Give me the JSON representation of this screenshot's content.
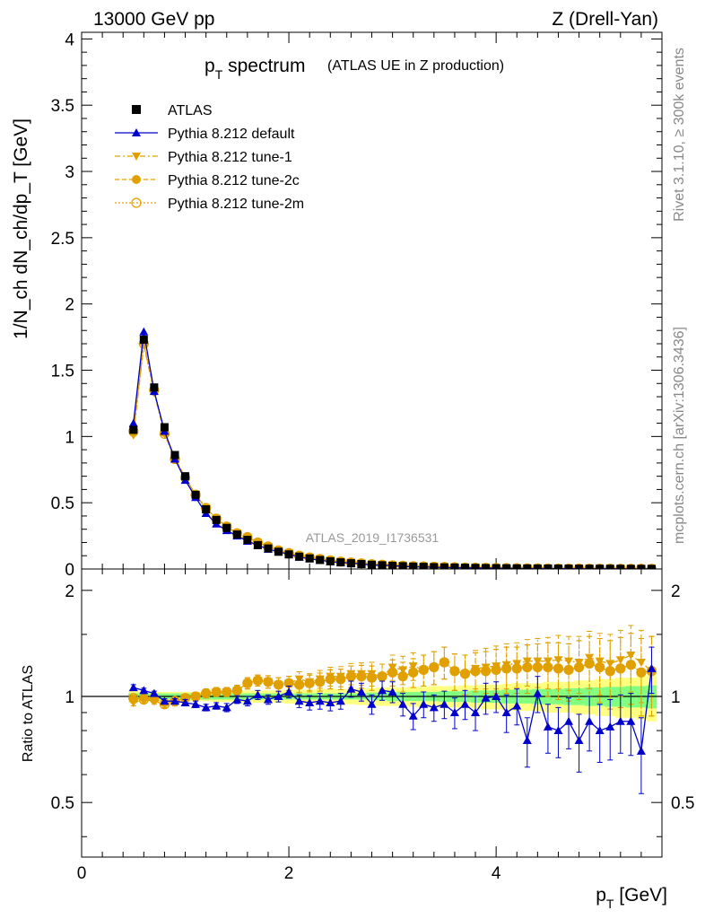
{
  "header": {
    "left_label": "13000 GeV pp",
    "right_label": "Z (Drell-Yan)"
  },
  "side_labels": {
    "rivet": "Rivet 3.1.10, ≥ 300k events",
    "mcplots": "mcplots.cern.ch [arXiv:1306.3436]"
  },
  "watermark": "ATLAS_2019_I1736531",
  "colors": {
    "data": "#000000",
    "default": "#0000cc",
    "tunes": "#e0a000",
    "band_inner": "#80ff80",
    "band_outer": "#ffff80"
  },
  "chart_data": [
    {
      "type": "line",
      "title_main": "p",
      "title_sub": "T",
      "title_rest": " spectrum",
      "title_note": "(ATLAS UE in Z production)",
      "ylabel": "1/N_ch dN_ch/dp_T [GeV]",
      "xlim": [
        0,
        5.6
      ],
      "ylim": [
        0,
        4.05
      ],
      "y_ticks": [
        0,
        0.5,
        1,
        1.5,
        2,
        2.5,
        3,
        3.5,
        4
      ],
      "y_tick_labels": [
        "0",
        "0.5",
        "1",
        "1.5",
        "2",
        "2.5",
        "3",
        "3.5",
        "4"
      ],
      "x": [
        0.5,
        0.6,
        0.7,
        0.8,
        0.9,
        1.0,
        1.1,
        1.2,
        1.3,
        1.4,
        1.5,
        1.6,
        1.7,
        1.8,
        1.9,
        2.0,
        2.1,
        2.2,
        2.3,
        2.4,
        2.5,
        2.6,
        2.7,
        2.8,
        2.9,
        3.0,
        3.1,
        3.2,
        3.3,
        3.4,
        3.5,
        3.6,
        3.7,
        3.8,
        3.9,
        4.0,
        4.1,
        4.2,
        4.3,
        4.4,
        4.5,
        4.6,
        4.7,
        4.8,
        4.9,
        5.0,
        5.1,
        5.2,
        5.3,
        5.4,
        5.5
      ],
      "legend": [
        {
          "label": "ATLAS",
          "marker": "square",
          "style": "none"
        },
        {
          "label": "Pythia 8.212 default",
          "marker": "triangle-up",
          "style": "solid"
        },
        {
          "label": "Pythia 8.212 tune-1",
          "marker": "triangle-down",
          "style": "dashdot"
        },
        {
          "label": "Pythia 8.212 tune-2c",
          "marker": "circle",
          "style": "dashed"
        },
        {
          "label": "Pythia 8.212 tune-2m",
          "marker": "circle-open",
          "style": "dotted"
        }
      ],
      "series": [
        {
          "name": "ATLAS",
          "values": [
            1.05,
            1.73,
            1.37,
            1.07,
            0.86,
            0.7,
            0.56,
            0.45,
            0.37,
            0.31,
            0.26,
            0.22,
            0.18,
            0.155,
            0.13,
            0.11,
            0.093,
            0.08,
            0.068,
            0.058,
            0.05,
            0.043,
            0.037,
            0.032,
            0.028,
            0.024,
            0.021,
            0.018,
            0.016,
            0.014,
            0.012,
            0.011,
            0.0095,
            0.0083,
            0.0073,
            0.0064,
            0.0056,
            0.0049,
            0.0043,
            0.0038,
            0.0034,
            0.003,
            0.0027,
            0.0024,
            0.0021,
            0.0019,
            0.0017,
            0.0015,
            0.0013,
            0.0012,
            0.0011
          ]
        },
        {
          "name": "Pythia 8.212 default",
          "values": [
            1.1,
            1.79,
            1.34,
            1.04,
            0.83,
            0.67,
            0.54,
            0.42,
            0.34,
            0.29,
            0.25,
            0.21,
            0.18,
            0.15,
            0.13,
            0.11,
            0.09,
            0.077,
            0.066,
            0.055,
            0.048,
            0.045,
            0.038,
            0.03,
            0.029,
            0.025,
            0.02,
            0.016,
            0.015,
            0.013,
            0.011,
            0.01,
            0.009,
            0.0075,
            0.0072,
            0.0064,
            0.005,
            0.0046,
            0.0032,
            0.0039,
            0.0028,
            0.0024,
            0.0023,
            0.0018,
            0.0018,
            0.0015,
            0.0014,
            0.0013,
            0.0011,
            0.001,
            0.0012
          ]
        },
        {
          "name": "Pythia 8.212 tune-1",
          "values": [
            1.01,
            1.69,
            1.33,
            1.02,
            0.83,
            0.69,
            0.56,
            0.46,
            0.38,
            0.32,
            0.27,
            0.24,
            0.2,
            0.17,
            0.14,
            0.12,
            0.1,
            0.088,
            0.076,
            0.066,
            0.057,
            0.05,
            0.043,
            0.037,
            0.032,
            0.029,
            0.025,
            0.022,
            0.019,
            0.017,
            0.015,
            0.013,
            0.011,
            0.01,
            0.0088,
            0.0078,
            0.0069,
            0.0061,
            0.0054,
            0.0048,
            0.0043,
            0.0038,
            0.0034,
            0.003,
            0.0027,
            0.0024,
            0.0021,
            0.0019,
            0.0017,
            0.0015,
            0.0013
          ]
        },
        {
          "name": "Pythia 8.212 tune-2c",
          "values": [
            1.03,
            1.71,
            1.34,
            1.03,
            0.84,
            0.69,
            0.56,
            0.46,
            0.38,
            0.32,
            0.27,
            0.24,
            0.2,
            0.17,
            0.14,
            0.12,
            0.1,
            0.087,
            0.075,
            0.065,
            0.056,
            0.049,
            0.042,
            0.036,
            0.032,
            0.028,
            0.024,
            0.021,
            0.019,
            0.017,
            0.015,
            0.013,
            0.011,
            0.0098,
            0.0086,
            0.0076,
            0.0067,
            0.0059,
            0.0052,
            0.0046,
            0.0041,
            0.0036,
            0.0032,
            0.0029,
            0.0026,
            0.0023,
            0.002,
            0.0018,
            0.0016,
            0.0014,
            0.0013
          ]
        },
        {
          "name": "Pythia 8.212 tune-2m",
          "values": [
            1.04,
            1.7,
            1.35,
            1.02,
            0.83,
            0.69,
            0.56,
            0.46,
            0.38,
            0.32,
            0.27,
            0.24,
            0.2,
            0.17,
            0.14,
            0.12,
            0.1,
            0.087,
            0.075,
            0.065,
            0.056,
            0.049,
            0.042,
            0.036,
            0.032,
            0.028,
            0.024,
            0.021,
            0.019,
            0.017,
            0.015,
            0.013,
            0.011,
            0.0098,
            0.0086,
            0.0076,
            0.0067,
            0.0059,
            0.0052,
            0.0046,
            0.0041,
            0.0036,
            0.0032,
            0.0029,
            0.0026,
            0.0023,
            0.002,
            0.0018,
            0.0016,
            0.0014,
            0.0013
          ]
        }
      ]
    },
    {
      "type": "line",
      "ylabel": "Ratio to ATLAS",
      "xlabel_main": "p",
      "xlabel_sub": "T",
      "xlabel_rest": " [GeV]",
      "xlim": [
        0,
        5.6
      ],
      "ylim": [
        0.35,
        2.3
      ],
      "x_ticks": [
        0,
        2,
        4
      ],
      "x_tick_labels": [
        "0",
        "2",
        "4"
      ],
      "y_ticks": [
        0.5,
        1,
        2
      ],
      "y_tick_labels": [
        "0.5",
        "1",
        "2"
      ],
      "band_inner_halfwidth": [
        0.02,
        0.02,
        0.02,
        0.02,
        0.02,
        0.02,
        0.02,
        0.02,
        0.02,
        0.02,
        0.02,
        0.02,
        0.02,
        0.02,
        0.02,
        0.02,
        0.02,
        0.02,
        0.02,
        0.02,
        0.02,
        0.02,
        0.02,
        0.025,
        0.025,
        0.03,
        0.03,
        0.03,
        0.03,
        0.03,
        0.035,
        0.035,
        0.035,
        0.04,
        0.04,
        0.04,
        0.045,
        0.045,
        0.045,
        0.05,
        0.05,
        0.05,
        0.055,
        0.055,
        0.06,
        0.06,
        0.065,
        0.065,
        0.07,
        0.07,
        0.075
      ],
      "band_outer_halfwidth": [
        0.04,
        0.03,
        0.03,
        0.03,
        0.03,
        0.03,
        0.03,
        0.03,
        0.035,
        0.035,
        0.035,
        0.04,
        0.04,
        0.04,
        0.04,
        0.045,
        0.045,
        0.045,
        0.05,
        0.05,
        0.05,
        0.05,
        0.055,
        0.055,
        0.06,
        0.06,
        0.06,
        0.065,
        0.065,
        0.07,
        0.07,
        0.07,
        0.075,
        0.075,
        0.08,
        0.08,
        0.085,
        0.09,
        0.09,
        0.09,
        0.1,
        0.1,
        0.1,
        0.11,
        0.11,
        0.12,
        0.12,
        0.13,
        0.13,
        0.14,
        0.15
      ],
      "series": [
        {
          "name": "Pythia 8.212 default",
          "values": [
            1.06,
            1.04,
            1.02,
            0.97,
            0.97,
            0.96,
            0.95,
            0.93,
            0.94,
            0.93,
            0.98,
            0.97,
            1.01,
            0.98,
            1.0,
            1.03,
            0.97,
            0.96,
            0.97,
            0.96,
            0.97,
            1.05,
            1.03,
            0.95,
            1.04,
            1.03,
            0.95,
            0.88,
            0.95,
            0.93,
            0.95,
            0.9,
            0.95,
            0.9,
            0.99,
            1.0,
            0.9,
            0.94,
            0.75,
            1.02,
            0.82,
            0.8,
            0.85,
            0.75,
            0.85,
            0.8,
            0.82,
            0.85,
            0.85,
            0.7,
            1.2
          ],
          "errors": [
            0.02,
            0.015,
            0.015,
            0.015,
            0.015,
            0.02,
            0.02,
            0.02,
            0.02,
            0.025,
            0.025,
            0.03,
            0.03,
            0.03,
            0.035,
            0.04,
            0.04,
            0.045,
            0.05,
            0.05,
            0.05,
            0.055,
            0.06,
            0.06,
            0.065,
            0.07,
            0.07,
            0.075,
            0.08,
            0.08,
            0.085,
            0.09,
            0.09,
            0.1,
            0.1,
            0.1,
            0.11,
            0.11,
            0.12,
            0.12,
            0.13,
            0.13,
            0.14,
            0.14,
            0.15,
            0.15,
            0.16,
            0.16,
            0.17,
            0.17,
            0.18
          ]
        },
        {
          "name": "Pythia 8.212 tune-1",
          "values": [
            0.96,
            0.98,
            0.97,
            0.95,
            0.96,
            0.99,
            1.0,
            1.02,
            1.03,
            1.03,
            1.04,
            1.09,
            1.11,
            1.1,
            1.08,
            1.09,
            1.12,
            1.1,
            1.12,
            1.14,
            1.14,
            1.16,
            1.16,
            1.16,
            1.14,
            1.21,
            1.19,
            1.22,
            1.19,
            1.21,
            1.25,
            1.18,
            1.16,
            1.2,
            1.21,
            1.22,
            1.23,
            1.24,
            1.26,
            1.26,
            1.26,
            1.27,
            1.26,
            1.25,
            1.29,
            1.26,
            1.24,
            1.27,
            1.31,
            1.25,
            1.18
          ],
          "errors": [
            0.02,
            0.02,
            0.02,
            0.02,
            0.02,
            0.025,
            0.025,
            0.03,
            0.03,
            0.03,
            0.035,
            0.04,
            0.04,
            0.045,
            0.05,
            0.05,
            0.055,
            0.06,
            0.065,
            0.07,
            0.075,
            0.08,
            0.085,
            0.09,
            0.095,
            0.1,
            0.11,
            0.11,
            0.12,
            0.13,
            0.13,
            0.14,
            0.15,
            0.15,
            0.16,
            0.17,
            0.18,
            0.18,
            0.19,
            0.2,
            0.21,
            0.22,
            0.22,
            0.23,
            0.24,
            0.25,
            0.26,
            0.27,
            0.28,
            0.29,
            0.3
          ]
        },
        {
          "name": "Pythia 8.212 tune-2c",
          "values": [
            0.98,
            0.99,
            0.98,
            0.96,
            0.97,
            0.99,
            1.0,
            1.02,
            1.03,
            1.03,
            1.04,
            1.09,
            1.11,
            1.1,
            1.08,
            1.09,
            1.08,
            1.09,
            1.1,
            1.12,
            1.12,
            1.14,
            1.14,
            1.13,
            1.14,
            1.17,
            1.14,
            1.17,
            1.19,
            1.21,
            1.25,
            1.18,
            1.16,
            1.18,
            1.18,
            1.19,
            1.2,
            1.2,
            1.21,
            1.21,
            1.21,
            1.2,
            1.19,
            1.21,
            1.24,
            1.21,
            1.18,
            1.2,
            1.23,
            1.17,
            1.18
          ],
          "errors": [
            0.02,
            0.02,
            0.02,
            0.02,
            0.02,
            0.025,
            0.025,
            0.03,
            0.03,
            0.03,
            0.035,
            0.04,
            0.04,
            0.045,
            0.05,
            0.05,
            0.055,
            0.06,
            0.065,
            0.07,
            0.075,
            0.08,
            0.085,
            0.09,
            0.095,
            0.1,
            0.11,
            0.11,
            0.12,
            0.13,
            0.13,
            0.14,
            0.15,
            0.15,
            0.16,
            0.17,
            0.18,
            0.18,
            0.19,
            0.2,
            0.21,
            0.22,
            0.22,
            0.23,
            0.24,
            0.25,
            0.26,
            0.27,
            0.28,
            0.29,
            0.3
          ]
        },
        {
          "name": "Pythia 8.212 tune-2m",
          "values": [
            0.99,
            0.98,
            0.99,
            0.95,
            0.97,
            0.99,
            1.0,
            1.02,
            1.03,
            1.03,
            1.04,
            1.09,
            1.11,
            1.1,
            1.08,
            1.09,
            1.08,
            1.09,
            1.1,
            1.12,
            1.12,
            1.14,
            1.14,
            1.13,
            1.14,
            1.17,
            1.14,
            1.17,
            1.19,
            1.21,
            1.25,
            1.18,
            1.16,
            1.18,
            1.18,
            1.19,
            1.2,
            1.2,
            1.21,
            1.21,
            1.21,
            1.2,
            1.19,
            1.21,
            1.24,
            1.21,
            1.18,
            1.2,
            1.23,
            1.17,
            1.18
          ],
          "errors": [
            0.02,
            0.02,
            0.02,
            0.02,
            0.02,
            0.025,
            0.025,
            0.03,
            0.03,
            0.03,
            0.035,
            0.04,
            0.04,
            0.045,
            0.05,
            0.05,
            0.055,
            0.06,
            0.065,
            0.07,
            0.075,
            0.08,
            0.085,
            0.09,
            0.095,
            0.1,
            0.11,
            0.11,
            0.12,
            0.13,
            0.13,
            0.14,
            0.15,
            0.15,
            0.16,
            0.17,
            0.18,
            0.18,
            0.19,
            0.2,
            0.21,
            0.22,
            0.22,
            0.23,
            0.24,
            0.25,
            0.26,
            0.27,
            0.28,
            0.29,
            0.3
          ]
        }
      ]
    }
  ]
}
